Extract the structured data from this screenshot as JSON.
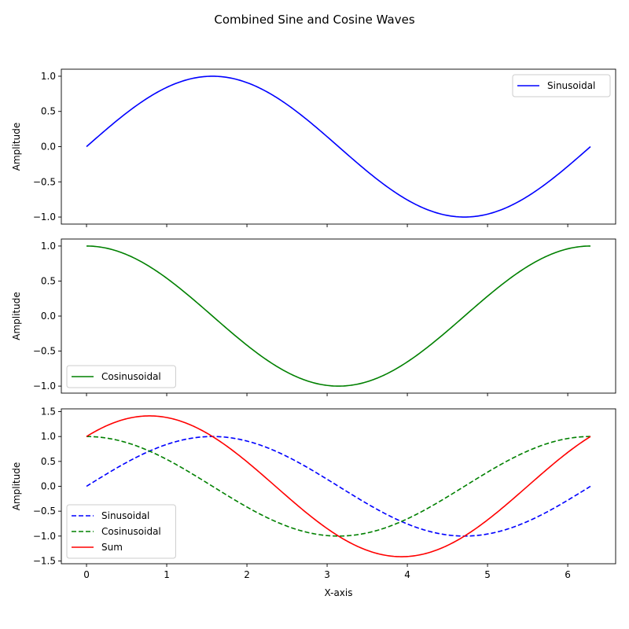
{
  "figure": {
    "title": "Combined Sine and Cosine Waves"
  },
  "chart_data": [
    {
      "type": "line",
      "ylabel": "Amplitude",
      "xlabel": "",
      "xlim": [
        -0.314,
        6.597
      ],
      "ylim": [
        -1.1,
        1.1
      ],
      "xticks": [
        0,
        1,
        2,
        3,
        4,
        5,
        6
      ],
      "yticks": [
        -1.0,
        -0.5,
        0.0,
        0.5,
        1.0
      ],
      "show_x_tick_labels": false,
      "legend_position": "top-right",
      "x_range": [
        0,
        6.2832
      ],
      "series": [
        {
          "name": "Sinusoidal",
          "function": "sin",
          "color": "#0000ff",
          "style": "solid"
        }
      ]
    },
    {
      "type": "line",
      "ylabel": "Amplitude",
      "xlabel": "",
      "xlim": [
        -0.314,
        6.597
      ],
      "ylim": [
        -1.1,
        1.1
      ],
      "xticks": [
        0,
        1,
        2,
        3,
        4,
        5,
        6
      ],
      "yticks": [
        -1.0,
        -0.5,
        0.0,
        0.5,
        1.0
      ],
      "show_x_tick_labels": false,
      "legend_position": "bottom-left",
      "x_range": [
        0,
        6.2832
      ],
      "series": [
        {
          "name": "Cosinusoidal",
          "function": "cos",
          "color": "#008000",
          "style": "solid"
        }
      ]
    },
    {
      "type": "line",
      "ylabel": "Amplitude",
      "xlabel": "X-axis",
      "xlim": [
        -0.314,
        6.597
      ],
      "ylim": [
        -1.556,
        1.556
      ],
      "xticks": [
        0,
        1,
        2,
        3,
        4,
        5,
        6
      ],
      "yticks": [
        -1.5,
        -1.0,
        -0.5,
        0.0,
        0.5,
        1.0,
        1.5
      ],
      "show_x_tick_labels": true,
      "legend_position": "bottom-left",
      "x_range": [
        0,
        6.2832
      ],
      "series": [
        {
          "name": "Sinusoidal",
          "function": "sin",
          "color": "#0000ff",
          "style": "dashed"
        },
        {
          "name": "Cosinusoidal",
          "function": "cos",
          "color": "#008000",
          "style": "dashed"
        },
        {
          "name": "Sum",
          "function": "sum",
          "color": "#ff0000",
          "style": "solid"
        }
      ]
    }
  ]
}
